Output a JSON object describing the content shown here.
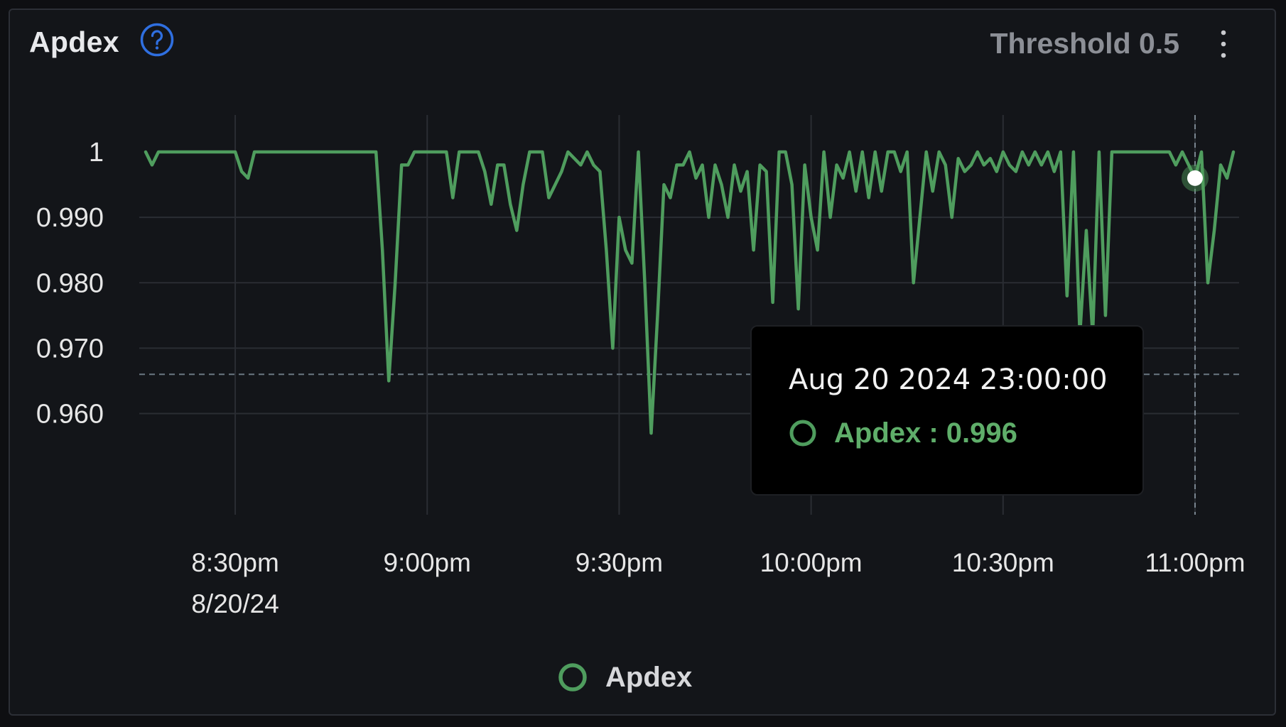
{
  "panel": {
    "title": "Apdex",
    "threshold_label": "Threshold 0.5",
    "help_icon": "question-circle-icon",
    "menu_icon": "vertical-dots-icon"
  },
  "colors": {
    "series": "#4f9d5e",
    "grid": "#2a2d33",
    "axis_text": "#e6e6e6",
    "threshold_line": "#6b7782",
    "help_icon": "#2f6fe0"
  },
  "tooltip": {
    "date": "Aug 20 2024 23:00:00",
    "label": "Apdex : 0.996"
  },
  "legend": {
    "label": "Apdex"
  },
  "chart_data": {
    "type": "line",
    "title": "Apdex",
    "ylim": [
      0.953,
      1.0
    ],
    "y_ticks": [
      {
        "value": 1.0,
        "label": "1"
      },
      {
        "value": 0.99,
        "label": "0.990"
      },
      {
        "value": 0.98,
        "label": "0.980"
      },
      {
        "value": 0.97,
        "label": "0.970"
      },
      {
        "value": 0.96,
        "label": "0.960"
      }
    ],
    "x_range": [
      "20:16",
      "23:06"
    ],
    "x_ticks": [
      {
        "time": "20:30",
        "label": "8:30pm",
        "sublabel": "8/20/24"
      },
      {
        "time": "21:00",
        "label": "9:00pm",
        "sublabel": ""
      },
      {
        "time": "21:30",
        "label": "9:30pm",
        "sublabel": ""
      },
      {
        "time": "22:00",
        "label": "10:00pm",
        "sublabel": ""
      },
      {
        "time": "22:30",
        "label": "10:30pm",
        "sublabel": ""
      },
      {
        "time": "23:00",
        "label": "11:00pm",
        "sublabel": ""
      }
    ],
    "grid": true,
    "threshold_value": 0.966,
    "hover": {
      "time": "23:00",
      "value": 0.996
    },
    "legend_position": "bottom-center",
    "series": [
      {
        "name": "Apdex",
        "points": [
          [
            "20:16",
            1.0
          ],
          [
            "20:17",
            0.998
          ],
          [
            "20:18",
            1.0
          ],
          [
            "20:30",
            1.0
          ],
          [
            "20:31",
            0.997
          ],
          [
            "20:32",
            0.996
          ],
          [
            "20:33",
            1.0
          ],
          [
            "20:52",
            1.0
          ],
          [
            "20:53",
            0.985
          ],
          [
            "20:54",
            0.965
          ],
          [
            "20:55",
            0.98
          ],
          [
            "20:56",
            0.998
          ],
          [
            "20:57",
            0.998
          ],
          [
            "20:58",
            1.0
          ],
          [
            "21:03",
            1.0
          ],
          [
            "21:04",
            0.993
          ],
          [
            "21:05",
            1.0
          ],
          [
            "21:08",
            1.0
          ],
          [
            "21:09",
            0.997
          ],
          [
            "21:10",
            0.992
          ],
          [
            "21:11",
            0.998
          ],
          [
            "21:12",
            0.998
          ],
          [
            "21:13",
            0.992
          ],
          [
            "21:14",
            0.988
          ],
          [
            "21:15",
            0.995
          ],
          [
            "21:16",
            1.0
          ],
          [
            "21:18",
            1.0
          ],
          [
            "21:19",
            0.993
          ],
          [
            "21:20",
            0.995
          ],
          [
            "21:21",
            0.997
          ],
          [
            "21:22",
            1.0
          ],
          [
            "21:23",
            0.999
          ],
          [
            "21:24",
            0.998
          ],
          [
            "21:25",
            1.0
          ],
          [
            "21:26",
            0.998
          ],
          [
            "21:27",
            0.997
          ],
          [
            "21:28",
            0.985
          ],
          [
            "21:29",
            0.97
          ],
          [
            "21:30",
            0.99
          ],
          [
            "21:31",
            0.985
          ],
          [
            "21:32",
            0.983
          ],
          [
            "21:33",
            1.0
          ],
          [
            "21:34",
            0.98
          ],
          [
            "21:35",
            0.957
          ],
          [
            "21:36",
            0.975
          ],
          [
            "21:37",
            0.995
          ],
          [
            "21:38",
            0.993
          ],
          [
            "21:39",
            0.998
          ],
          [
            "21:40",
            0.998
          ],
          [
            "21:41",
            1.0
          ],
          [
            "21:42",
            0.996
          ],
          [
            "21:43",
            0.998
          ],
          [
            "21:44",
            0.99
          ],
          [
            "21:45",
            0.998
          ],
          [
            "21:46",
            0.995
          ],
          [
            "21:47",
            0.99
          ],
          [
            "21:48",
            0.998
          ],
          [
            "21:49",
            0.994
          ],
          [
            "21:50",
            0.997
          ],
          [
            "21:51",
            0.985
          ],
          [
            "21:52",
            0.998
          ],
          [
            "21:53",
            0.997
          ],
          [
            "21:54",
            0.977
          ],
          [
            "21:55",
            1.0
          ],
          [
            "21:56",
            1.0
          ],
          [
            "21:57",
            0.995
          ],
          [
            "21:58",
            0.976
          ],
          [
            "21:59",
            0.998
          ],
          [
            "22:00",
            0.99
          ],
          [
            "22:01",
            0.985
          ],
          [
            "22:02",
            1.0
          ],
          [
            "22:03",
            0.99
          ],
          [
            "22:04",
            0.998
          ],
          [
            "22:05",
            0.996
          ],
          [
            "22:06",
            1.0
          ],
          [
            "22:07",
            0.994
          ],
          [
            "22:08",
            1.0
          ],
          [
            "22:09",
            0.993
          ],
          [
            "22:10",
            1.0
          ],
          [
            "22:11",
            0.994
          ],
          [
            "22:12",
            1.0
          ],
          [
            "22:13",
            1.0
          ],
          [
            "22:14",
            0.997
          ],
          [
            "22:15",
            1.0
          ],
          [
            "22:16",
            0.98
          ],
          [
            "22:17",
            0.99
          ],
          [
            "22:18",
            1.0
          ],
          [
            "22:19",
            0.994
          ],
          [
            "22:20",
            1.0
          ],
          [
            "22:21",
            0.998
          ],
          [
            "22:22",
            0.99
          ],
          [
            "22:23",
            0.999
          ],
          [
            "22:24",
            0.997
          ],
          [
            "22:25",
            0.998
          ],
          [
            "22:26",
            1.0
          ],
          [
            "22:27",
            0.998
          ],
          [
            "22:28",
            0.999
          ],
          [
            "22:29",
            0.997
          ],
          [
            "22:30",
            1.0
          ],
          [
            "22:31",
            0.998
          ],
          [
            "22:32",
            0.997
          ],
          [
            "22:33",
            1.0
          ],
          [
            "22:34",
            0.998
          ],
          [
            "22:35",
            1.0
          ],
          [
            "22:36",
            0.998
          ],
          [
            "22:37",
            1.0
          ],
          [
            "22:38",
            0.997
          ],
          [
            "22:39",
            1.0
          ],
          [
            "22:40",
            0.978
          ],
          [
            "22:41",
            1.0
          ],
          [
            "22:42",
            0.972
          ],
          [
            "22:43",
            0.988
          ],
          [
            "22:44",
            0.972
          ],
          [
            "22:45",
            1.0
          ],
          [
            "22:46",
            0.975
          ],
          [
            "22:47",
            1.0
          ],
          [
            "22:56",
            1.0
          ],
          [
            "22:57",
            0.998
          ],
          [
            "22:58",
            1.0
          ],
          [
            "22:59",
            0.998
          ],
          [
            "23:00",
            0.996
          ],
          [
            "23:01",
            1.0
          ],
          [
            "23:02",
            0.98
          ],
          [
            "23:03",
            0.988
          ],
          [
            "23:04",
            0.998
          ],
          [
            "23:05",
            0.996
          ],
          [
            "23:06",
            1.0
          ]
        ]
      }
    ]
  }
}
